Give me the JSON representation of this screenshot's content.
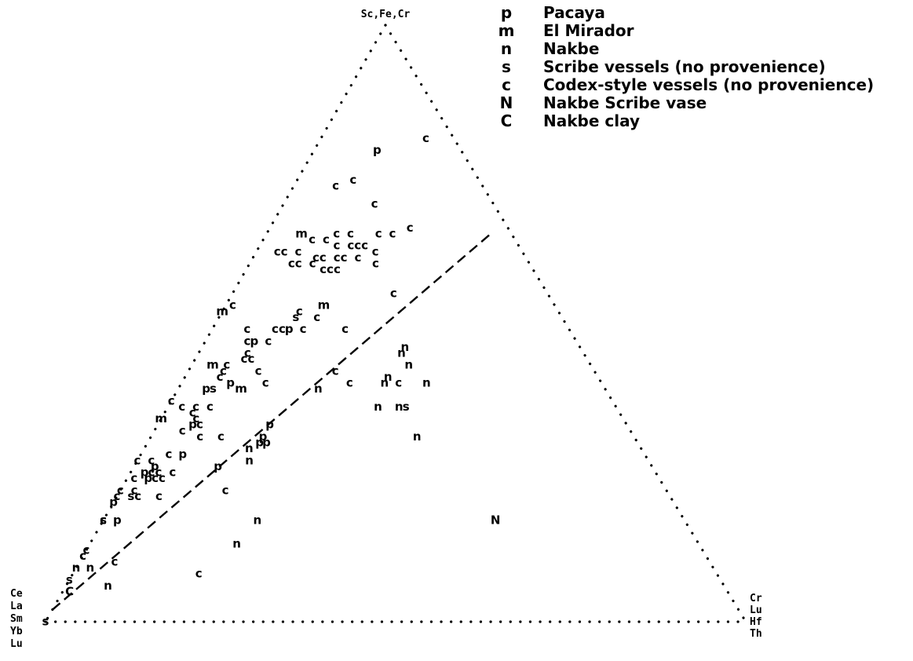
{
  "chart_data": {
    "type": "scatter",
    "subtype": "ternary",
    "vertices": {
      "top": {
        "label": "Sc,Fe,Cr"
      },
      "left": {
        "lines": [
          "Ce",
          "La",
          "Sm",
          "Yb",
          "Lu"
        ]
      },
      "right": {
        "lines": [
          "Cr",
          "Lu",
          "Hf",
          "Th"
        ]
      }
    },
    "legend": {
      "position": "top-right",
      "entries": [
        {
          "code": "p",
          "label": "Pacaya"
        },
        {
          "code": "m",
          "label": "El Mirador"
        },
        {
          "code": "n",
          "label": "Nakbe"
        },
        {
          "code": "s",
          "label": "Scribe vessels (no provenience)"
        },
        {
          "code": "c",
          "label": "Codex-style vessels (no provenience)"
        },
        {
          "code": "N",
          "label": "Nakbe Scribe vase"
        },
        {
          "code": "C",
          "label": "Nakbe clay"
        }
      ]
    },
    "axis_note": "ternary coordinates (top, right) in fractions; left = 1 - top - right",
    "divider_line": {
      "style": "dashed",
      "from": {
        "top": 0.02,
        "right": 0.0
      },
      "to": {
        "top": 0.65,
        "right": 0.32
      }
    },
    "points": [
      {
        "code": "p",
        "top": 0.79,
        "right": 0.09
      },
      {
        "code": "c",
        "top": 0.81,
        "right": 0.15
      },
      {
        "code": "c",
        "top": 0.73,
        "right": 0.06
      },
      {
        "code": "c",
        "top": 0.74,
        "right": 0.08
      },
      {
        "code": "c",
        "top": 0.7,
        "right": 0.13
      },
      {
        "code": "m",
        "top": 0.65,
        "right": 0.05
      },
      {
        "code": "c",
        "top": 0.65,
        "right": 0.1
      },
      {
        "code": "c",
        "top": 0.65,
        "right": 0.12
      },
      {
        "code": "c",
        "top": 0.64,
        "right": 0.07
      },
      {
        "code": "c",
        "top": 0.64,
        "right": 0.09
      },
      {
        "code": "c",
        "top": 0.65,
        "right": 0.16
      },
      {
        "code": "c",
        "top": 0.65,
        "right": 0.18
      },
      {
        "code": "c",
        "top": 0.66,
        "right": 0.2
      },
      {
        "code": "c",
        "top": 0.63,
        "right": 0.11
      },
      {
        "code": "c",
        "top": 0.63,
        "right": 0.13
      },
      {
        "code": "c",
        "top": 0.63,
        "right": 0.14
      },
      {
        "code": "c",
        "top": 0.63,
        "right": 0.15
      },
      {
        "code": "c",
        "top": 0.62,
        "right": 0.17
      },
      {
        "code": "c",
        "top": 0.62,
        "right": 0.03
      },
      {
        "code": "c",
        "top": 0.62,
        "right": 0.04
      },
      {
        "code": "c",
        "top": 0.62,
        "right": 0.06
      },
      {
        "code": "c",
        "top": 0.61,
        "right": 0.09
      },
      {
        "code": "c",
        "top": 0.61,
        "right": 0.1
      },
      {
        "code": "c",
        "top": 0.61,
        "right": 0.12
      },
      {
        "code": "c",
        "top": 0.61,
        "right": 0.13
      },
      {
        "code": "c",
        "top": 0.61,
        "right": 0.15
      },
      {
        "code": "c",
        "top": 0.6,
        "right": 0.06
      },
      {
        "code": "c",
        "top": 0.6,
        "right": 0.07
      },
      {
        "code": "c",
        "top": 0.6,
        "right": 0.09
      },
      {
        "code": "c",
        "top": 0.59,
        "right": 0.11
      },
      {
        "code": "c",
        "top": 0.59,
        "right": 0.12
      },
      {
        "code": "c",
        "top": 0.59,
        "right": 0.13
      },
      {
        "code": "c",
        "top": 0.6,
        "right": 0.18
      },
      {
        "code": "c",
        "top": 0.55,
        "right": 0.23
      },
      {
        "code": "m",
        "top": 0.52,
        "right": 0.0
      },
      {
        "code": "c",
        "top": 0.53,
        "right": 0.01
      },
      {
        "code": "c",
        "top": 0.52,
        "right": 0.11
      },
      {
        "code": "s",
        "top": 0.51,
        "right": 0.11
      },
      {
        "code": "m",
        "top": 0.53,
        "right": 0.14
      },
      {
        "code": "c",
        "top": 0.51,
        "right": 0.14
      },
      {
        "code": "c",
        "top": 0.49,
        "right": 0.05
      },
      {
        "code": "c",
        "top": 0.49,
        "right": 0.09
      },
      {
        "code": "c",
        "top": 0.49,
        "right": 0.1
      },
      {
        "code": "p",
        "top": 0.49,
        "right": 0.11
      },
      {
        "code": "c",
        "top": 0.49,
        "right": 0.13
      },
      {
        "code": "c",
        "top": 0.49,
        "right": 0.19
      },
      {
        "code": "c",
        "top": 0.47,
        "right": 0.06
      },
      {
        "code": "p",
        "top": 0.47,
        "right": 0.07
      },
      {
        "code": "c",
        "top": 0.47,
        "right": 0.09
      },
      {
        "code": "c",
        "top": 0.45,
        "right": 0.07
      },
      {
        "code": "m",
        "top": 0.43,
        "right": 0.03
      },
      {
        "code": "c",
        "top": 0.43,
        "right": 0.05
      },
      {
        "code": "c",
        "top": 0.44,
        "right": 0.07
      },
      {
        "code": "c",
        "top": 0.44,
        "right": 0.08
      },
      {
        "code": "c",
        "top": 0.42,
        "right": 0.05
      },
      {
        "code": "c",
        "top": 0.42,
        "right": 0.1
      },
      {
        "code": "c",
        "top": 0.42,
        "right": 0.21
      },
      {
        "code": "c",
        "top": 0.41,
        "right": 0.05
      },
      {
        "code": "p",
        "top": 0.4,
        "right": 0.07
      },
      {
        "code": "c",
        "top": 0.4,
        "right": 0.12
      },
      {
        "code": "p",
        "top": 0.39,
        "right": 0.04
      },
      {
        "code": "s",
        "top": 0.39,
        "right": 0.05
      },
      {
        "code": "m",
        "top": 0.39,
        "right": 0.09
      },
      {
        "code": "n",
        "top": 0.39,
        "right": 0.2
      },
      {
        "code": "c",
        "top": 0.4,
        "right": 0.24
      },
      {
        "code": "n",
        "top": 0.46,
        "right": 0.29
      },
      {
        "code": "n",
        "top": 0.45,
        "right": 0.29
      },
      {
        "code": "n",
        "top": 0.43,
        "right": 0.31
      },
      {
        "code": "n",
        "top": 0.41,
        "right": 0.29
      },
      {
        "code": "n",
        "top": 0.4,
        "right": 0.29
      },
      {
        "code": "c",
        "top": 0.4,
        "right": 0.31
      },
      {
        "code": "n",
        "top": 0.4,
        "right": 0.35
      },
      {
        "code": "n",
        "top": 0.36,
        "right": 0.3
      },
      {
        "code": "n",
        "top": 0.36,
        "right": 0.33
      },
      {
        "code": "s",
        "top": 0.36,
        "right": 0.34
      },
      {
        "code": "n",
        "top": 0.31,
        "right": 0.38
      },
      {
        "code": "c",
        "top": 0.37,
        "right": 0.0
      },
      {
        "code": "m",
        "top": 0.34,
        "right": 0.0
      },
      {
        "code": "c",
        "top": 0.36,
        "right": 0.02
      },
      {
        "code": "c",
        "top": 0.36,
        "right": 0.04
      },
      {
        "code": "c",
        "top": 0.35,
        "right": 0.04
      },
      {
        "code": "c",
        "top": 0.36,
        "right": 0.06
      },
      {
        "code": "c",
        "top": 0.34,
        "right": 0.05
      },
      {
        "code": "p",
        "top": 0.33,
        "right": 0.05
      },
      {
        "code": "c",
        "top": 0.33,
        "right": 0.06
      },
      {
        "code": "c",
        "top": 0.31,
        "right": 0.07
      },
      {
        "code": "c",
        "top": 0.32,
        "right": 0.04
      },
      {
        "code": "c",
        "top": 0.31,
        "right": 0.1
      },
      {
        "code": "p",
        "top": 0.33,
        "right": 0.16
      },
      {
        "code": "p",
        "top": 0.31,
        "right": 0.16
      },
      {
        "code": "p",
        "top": 0.3,
        "right": 0.16
      },
      {
        "code": "p",
        "top": 0.3,
        "right": 0.17
      },
      {
        "code": "c",
        "top": 0.27,
        "right": 0.0
      },
      {
        "code": "c",
        "top": 0.27,
        "right": 0.02
      },
      {
        "code": "c",
        "top": 0.28,
        "right": 0.04
      },
      {
        "code": "p",
        "top": 0.28,
        "right": 0.06
      },
      {
        "code": "n",
        "top": 0.29,
        "right": 0.15
      },
      {
        "code": "p",
        "top": 0.25,
        "right": 0.02
      },
      {
        "code": "p",
        "top": 0.26,
        "right": 0.03
      },
      {
        "code": "c",
        "top": 0.25,
        "right": 0.03
      },
      {
        "code": "c",
        "top": 0.25,
        "right": 0.04
      },
      {
        "code": "c",
        "top": 0.24,
        "right": 0.01
      },
      {
        "code": "p",
        "top": 0.24,
        "right": 0.03
      },
      {
        "code": "c",
        "top": 0.24,
        "right": 0.04
      },
      {
        "code": "c",
        "top": 0.24,
        "right": 0.05
      },
      {
        "code": "c",
        "top": 0.25,
        "right": 0.06
      },
      {
        "code": "p",
        "top": 0.26,
        "right": 0.12
      },
      {
        "code": "n",
        "top": 0.27,
        "right": 0.16
      },
      {
        "code": "c",
        "top": 0.22,
        "right": 0.0
      },
      {
        "code": "c",
        "top": 0.22,
        "right": 0.02
      },
      {
        "code": "p",
        "top": 0.2,
        "right": 0.0
      },
      {
        "code": "c",
        "top": 0.21,
        "right": 0.0
      },
      {
        "code": "s",
        "top": 0.21,
        "right": 0.02
      },
      {
        "code": "c",
        "top": 0.21,
        "right": 0.03
      },
      {
        "code": "c",
        "top": 0.21,
        "right": 0.06
      },
      {
        "code": "c",
        "top": 0.22,
        "right": 0.15
      },
      {
        "code": "c",
        "top": 0.17,
        "right": 0.0
      },
      {
        "code": "s",
        "top": 0.17,
        "right": 0.0
      },
      {
        "code": "p",
        "top": 0.17,
        "right": 0.02
      },
      {
        "code": "n",
        "top": 0.17,
        "right": 0.22
      },
      {
        "code": "N",
        "top": 0.17,
        "right": 0.56
      },
      {
        "code": "c",
        "top": 0.12,
        "right": 0.0
      },
      {
        "code": "c",
        "top": 0.11,
        "right": 0.0
      },
      {
        "code": "n",
        "top": 0.09,
        "right": 0.0
      },
      {
        "code": "n",
        "top": 0.09,
        "right": 0.02
      },
      {
        "code": "c",
        "top": 0.1,
        "right": 0.05
      },
      {
        "code": "n",
        "top": 0.13,
        "right": 0.21
      },
      {
        "code": "c",
        "top": 0.08,
        "right": 0.18
      },
      {
        "code": "s",
        "top": 0.07,
        "right": 0.0
      },
      {
        "code": "C",
        "top": 0.05,
        "right": 0.01
      },
      {
        "code": "n",
        "top": 0.06,
        "right": 0.06
      },
      {
        "code": "s",
        "top": 0.0,
        "right": 0.0
      }
    ]
  }
}
